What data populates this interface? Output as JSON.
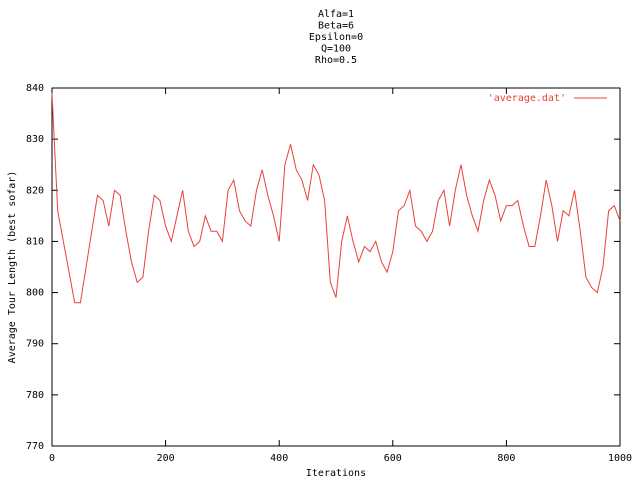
{
  "chart_data": {
    "type": "line",
    "title": [
      "Alfa=1",
      "Beta=6",
      "Epsilon=0",
      "Q=100",
      "Rho=0.5"
    ],
    "x_label": "Iterations",
    "y_label": "Average Tour Length (best sofar)",
    "x": [
      0,
      10,
      20,
      30,
      40,
      50,
      60,
      70,
      80,
      90,
      100,
      110,
      120,
      130,
      140,
      150,
      160,
      170,
      180,
      190,
      200,
      210,
      220,
      230,
      240,
      250,
      260,
      270,
      280,
      290,
      300,
      310,
      320,
      330,
      340,
      350,
      360,
      370,
      380,
      390,
      400,
      410,
      420,
      430,
      440,
      450,
      460,
      470,
      480,
      490,
      500,
      510,
      520,
      530,
      540,
      550,
      560,
      570,
      580,
      590,
      600,
      610,
      620,
      630,
      640,
      650,
      660,
      670,
      680,
      690,
      700,
      710,
      720,
      730,
      740,
      750,
      760,
      770,
      780,
      790,
      800,
      810,
      820,
      830,
      840,
      850,
      860,
      870,
      880,
      890,
      900,
      910,
      920,
      930,
      940,
      950,
      960,
      970,
      980,
      990,
      1000
    ],
    "series": [
      {
        "name": "'average.dat'",
        "color": "#e8413a",
        "values": [
          839,
          816,
          810,
          804,
          798,
          798,
          805,
          812,
          819,
          818,
          813,
          820,
          819,
          812,
          806,
          802,
          803,
          812,
          819,
          818,
          813,
          810,
          815,
          820,
          812,
          809,
          810,
          815,
          812,
          812,
          810,
          820,
          822,
          816,
          814,
          813,
          820,
          824,
          819,
          815,
          810,
          825,
          829,
          824,
          822,
          818,
          825,
          823,
          818,
          802,
          799,
          810,
          815,
          810,
          806,
          809,
          808,
          810,
          806,
          804,
          808,
          816,
          817,
          820,
          813,
          812,
          810,
          812,
          818,
          820,
          813,
          820,
          825,
          819,
          815,
          812,
          818,
          822,
          819,
          814,
          817,
          817,
          818,
          813,
          809,
          809,
          815,
          822,
          817,
          810,
          816,
          815,
          820,
          812,
          803,
          801,
          800,
          805,
          816,
          817,
          814
        ]
      }
    ],
    "xlim": [
      0,
      1000
    ],
    "xticks": [
      0,
      200,
      400,
      600,
      800,
      1000
    ],
    "ylim": [
      770,
      840
    ],
    "yticks": [
      770,
      780,
      790,
      800,
      810,
      820,
      830,
      840
    ],
    "grid": false,
    "legend": "top-right"
  }
}
